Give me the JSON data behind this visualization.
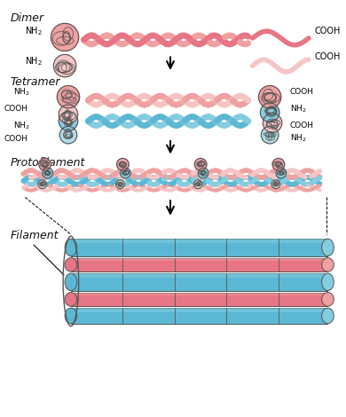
{
  "labels": {
    "dimer": "Dimer",
    "tetramer": "Tetramer",
    "protofilament": "Protofilament",
    "filament": "Filament",
    "nh2": "NH₂",
    "cooh": "COOH"
  },
  "colors": {
    "pink_dark": "#E87585",
    "pink_mid": "#EFA0A0",
    "pink_light": "#F5C5C5",
    "blue_dark": "#5BB8D4",
    "blue_mid": "#85CCDF",
    "blue_light": "#B0DDE8",
    "gray_light": "#CCCCCC",
    "gray_mid": "#AAAAAA",
    "outline": "#555555",
    "text": "#111111",
    "bg": "#FFFFFF"
  }
}
